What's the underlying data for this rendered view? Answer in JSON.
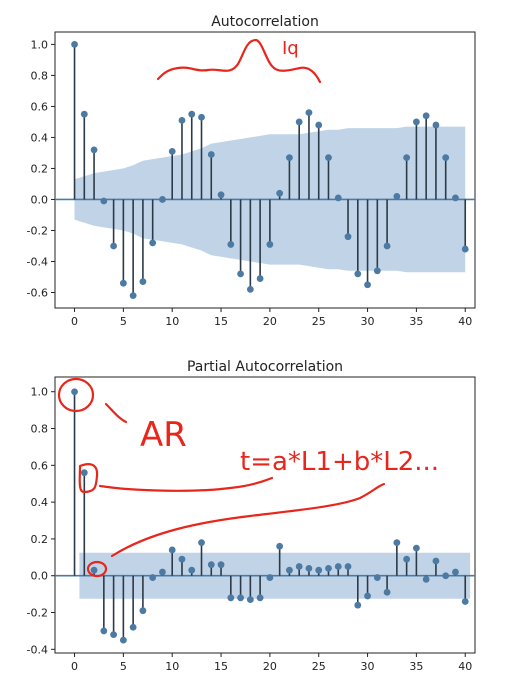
{
  "chart_data": [
    {
      "type": "stem",
      "title": "Autocorrelation",
      "xlim": [
        -2,
        41
      ],
      "ylim": [
        -0.7,
        1.08
      ],
      "xticks": [
        0,
        5,
        10,
        15,
        20,
        25,
        30,
        35,
        40
      ],
      "yticks": [
        1.0,
        0.8,
        0.6,
        0.4,
        0.2,
        0.0,
        -0.2,
        -0.4,
        -0.6
      ],
      "lags": [
        0,
        1,
        2,
        3,
        4,
        5,
        6,
        7,
        8,
        9,
        10,
        11,
        12,
        13,
        14,
        15,
        16,
        17,
        18,
        19,
        20,
        21,
        22,
        23,
        24,
        25,
        26,
        27,
        28,
        29,
        30,
        31,
        32,
        33,
        34,
        35,
        36,
        37,
        38,
        39,
        40
      ],
      "values": [
        1.0,
        0.55,
        0.32,
        -0.01,
        -0.3,
        -0.54,
        -0.62,
        -0.53,
        -0.28,
        0.0,
        0.31,
        0.51,
        0.55,
        0.53,
        0.29,
        0.03,
        -0.29,
        -0.48,
        -0.58,
        -0.51,
        -0.29,
        0.04,
        0.27,
        0.5,
        0.56,
        0.48,
        0.27,
        0.01,
        -0.24,
        -0.48,
        -0.55,
        -0.46,
        -0.3,
        0.02,
        0.27,
        0.5,
        0.54,
        0.48,
        0.27,
        0.01,
        -0.32
      ],
      "confidence_band": {
        "lags": [
          0,
          1,
          2,
          3,
          4,
          5,
          6,
          7,
          8,
          9,
          10,
          11,
          12,
          13,
          14,
          15,
          16,
          17,
          18,
          19,
          20,
          21,
          22,
          23,
          24,
          25,
          26,
          27,
          28,
          29,
          30,
          31,
          32,
          33,
          34,
          35,
          36,
          37,
          38,
          39,
          40
        ],
        "upper": [
          0.13,
          0.15,
          0.17,
          0.18,
          0.19,
          0.2,
          0.22,
          0.25,
          0.26,
          0.27,
          0.28,
          0.29,
          0.31,
          0.33,
          0.36,
          0.37,
          0.38,
          0.39,
          0.4,
          0.41,
          0.42,
          0.42,
          0.42,
          0.42,
          0.43,
          0.44,
          0.45,
          0.45,
          0.46,
          0.46,
          0.46,
          0.46,
          0.46,
          0.46,
          0.47,
          0.47,
          0.47,
          0.47,
          0.47,
          0.47,
          0.47
        ]
      }
    },
    {
      "type": "stem",
      "title": "Partial Autocorrelation",
      "xlim": [
        -2,
        41
      ],
      "ylim": [
        -0.42,
        1.08
      ],
      "xticks": [
        0,
        5,
        10,
        15,
        20,
        25,
        30,
        35,
        40
      ],
      "yticks": [
        1.0,
        0.8,
        0.6,
        0.4,
        0.2,
        0.0,
        -0.2,
        -0.4
      ],
      "lags": [
        0,
        1,
        2,
        3,
        4,
        5,
        6,
        7,
        8,
        9,
        10,
        11,
        12,
        13,
        14,
        15,
        16,
        17,
        18,
        19,
        20,
        21,
        22,
        23,
        24,
        25,
        26,
        27,
        28,
        29,
        30,
        31,
        32,
        33,
        34,
        35,
        36,
        37,
        38,
        39,
        40
      ],
      "values": [
        1.0,
        0.56,
        0.03,
        -0.3,
        -0.32,
        -0.35,
        -0.28,
        -0.19,
        -0.01,
        0.02,
        0.14,
        0.09,
        0.03,
        0.18,
        0.06,
        0.06,
        -0.12,
        -0.12,
        -0.13,
        -0.12,
        -0.01,
        0.16,
        0.03,
        0.05,
        0.04,
        0.03,
        0.04,
        0.05,
        0.05,
        -0.16,
        -0.11,
        -0.01,
        -0.09,
        0.18,
        0.09,
        0.15,
        -0.02,
        0.08,
        0.0,
        0.02,
        -0.14
      ],
      "confidence_band": {
        "upper": 0.125,
        "lower": -0.125
      }
    }
  ],
  "annotations": {
    "acf_note": "Iq",
    "ar_label": "AR",
    "formula": "t=a*L1+b*L2..."
  },
  "colors": {
    "stem": "#2b3a48",
    "marker": "#4c7aa3",
    "band": "#b6cde3",
    "axis_line": "#4c7aa3",
    "ink": "#e8261c"
  }
}
